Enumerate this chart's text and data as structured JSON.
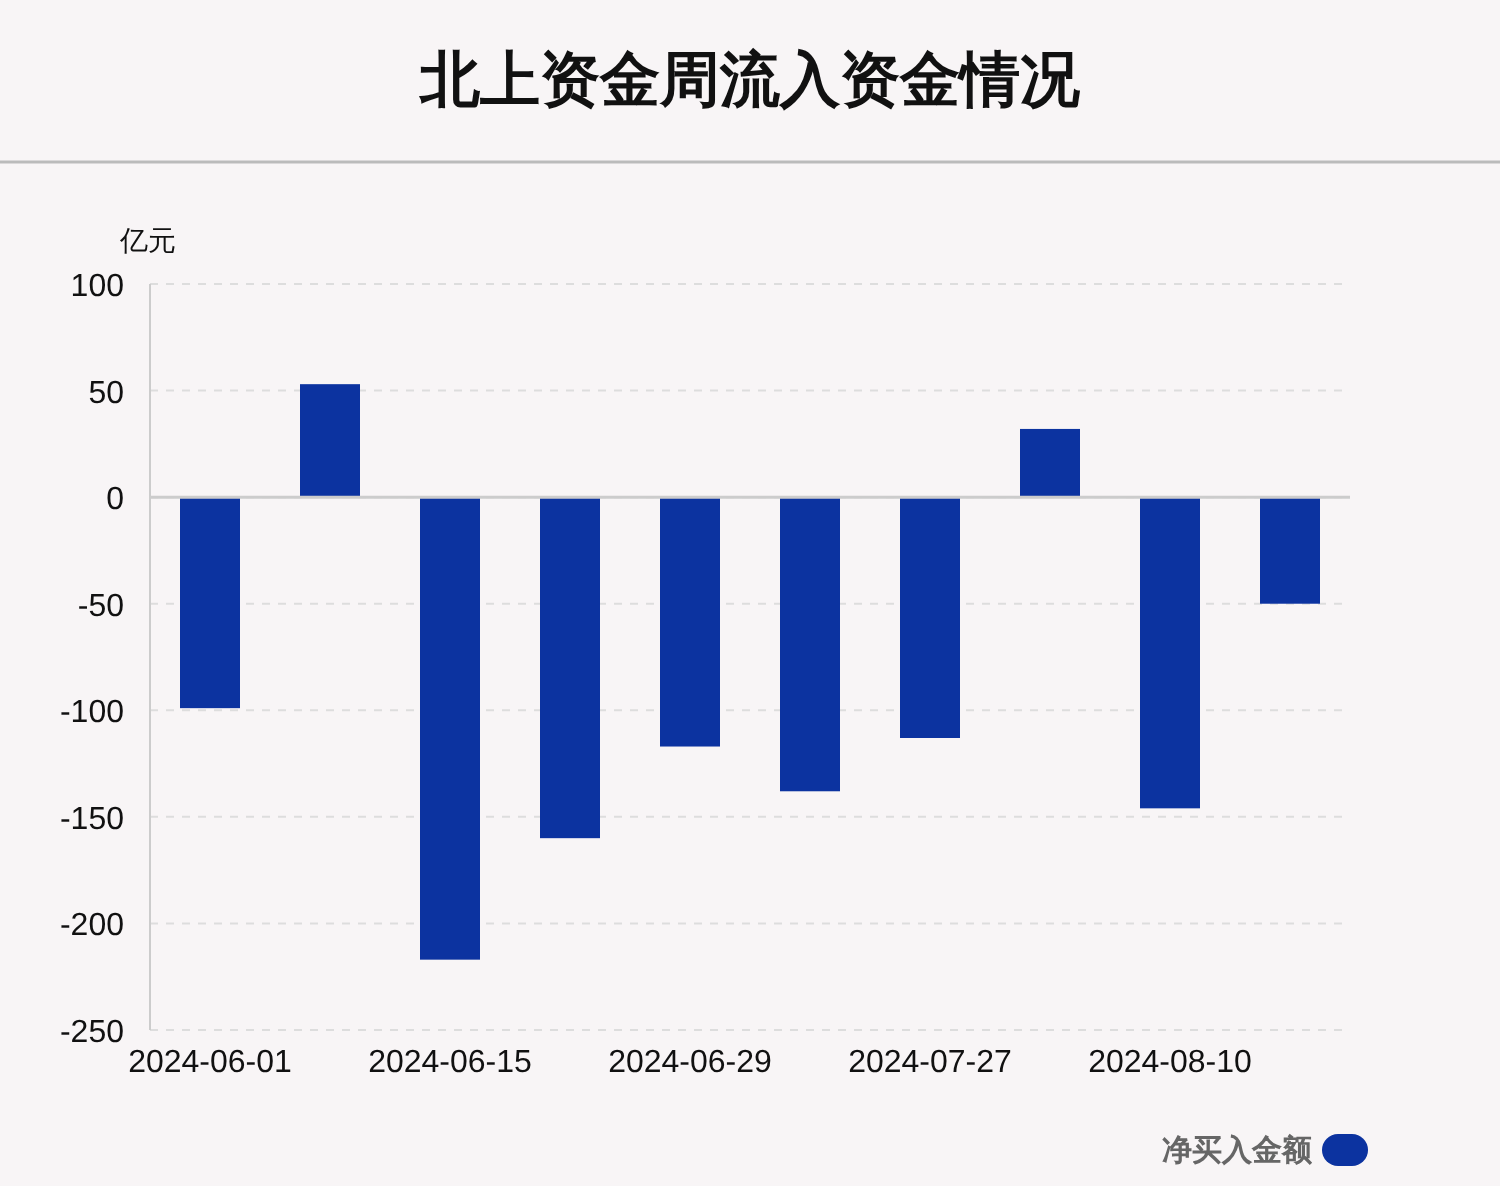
{
  "chart_data": {
    "type": "bar",
    "title": "北上资金周流入资金情况",
    "ylabel": "亿元",
    "categories": [
      "2024-06-01",
      null,
      "2024-06-15",
      null,
      "2024-06-29",
      null,
      "2024-07-27",
      null,
      "2024-08-10",
      null
    ],
    "series": [
      {
        "name": "净买入金额",
        "color": "#0c33a0",
        "values": [
          -99,
          53,
          -217,
          -160,
          -117,
          -138,
          -113,
          32,
          -146,
          -50
        ]
      }
    ],
    "ylim": [
      -250,
      100
    ],
    "yticks": [
      -250,
      -200,
      -150,
      -100,
      -50,
      0,
      50,
      100
    ],
    "grid": "y",
    "legend": "bottom right"
  }
}
